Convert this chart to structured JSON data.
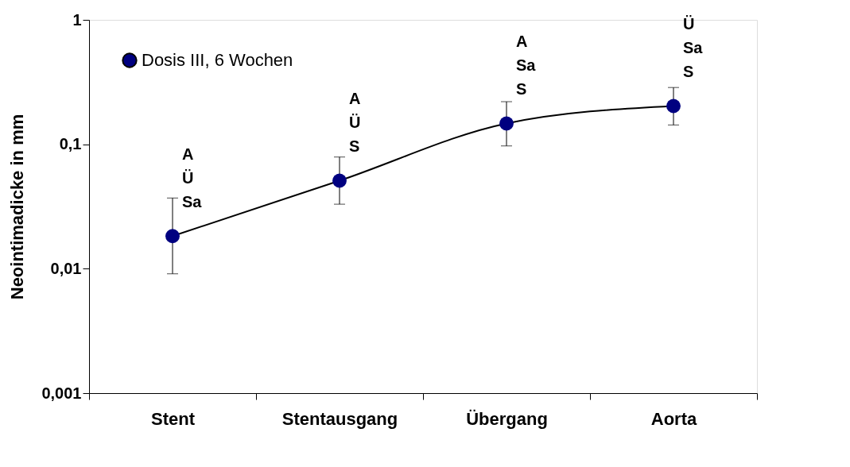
{
  "chart_data": {
    "type": "line",
    "ylabel": "Neointimadicke in mm",
    "categories": [
      "Stent",
      "Stentausgang",
      "Übergang",
      "Aorta"
    ],
    "series": [
      {
        "name": "Dosis III, 6 Wochen",
        "color": "#000080",
        "values": [
          0.0183,
          0.051,
          0.147,
          0.203
        ],
        "errors": [
          [
            0.0091,
            0.037
          ],
          [
            0.033,
            0.079
          ],
          [
            0.097,
            0.22
          ],
          [
            0.143,
            0.286
          ]
        ]
      }
    ],
    "log": true,
    "ylim": [
      0.001,
      1
    ],
    "yticks": [
      {
        "value": 0.001,
        "label": "0,001"
      },
      {
        "value": 0.01,
        "label": "0,01"
      },
      {
        "value": 0.1,
        "label": "0,1"
      },
      {
        "value": 1,
        "label": "1"
      }
    ],
    "grid": false,
    "legend": "top left",
    "marker": "circle",
    "line_style": "solid",
    "annotations": [
      {
        "text": "A\nÜ\nSa",
        "x": "Stent",
        "y": 0.0183
      },
      {
        "text": "A\nÜ\nS",
        "x": "Stentausgang",
        "y": 0.051
      },
      {
        "text": "A\nSa\nS",
        "x": "Übergang",
        "y": 0.147
      },
      {
        "text": "Ü\nSa\nS",
        "x": "Aorta",
        "y": 0.203
      }
    ]
  }
}
